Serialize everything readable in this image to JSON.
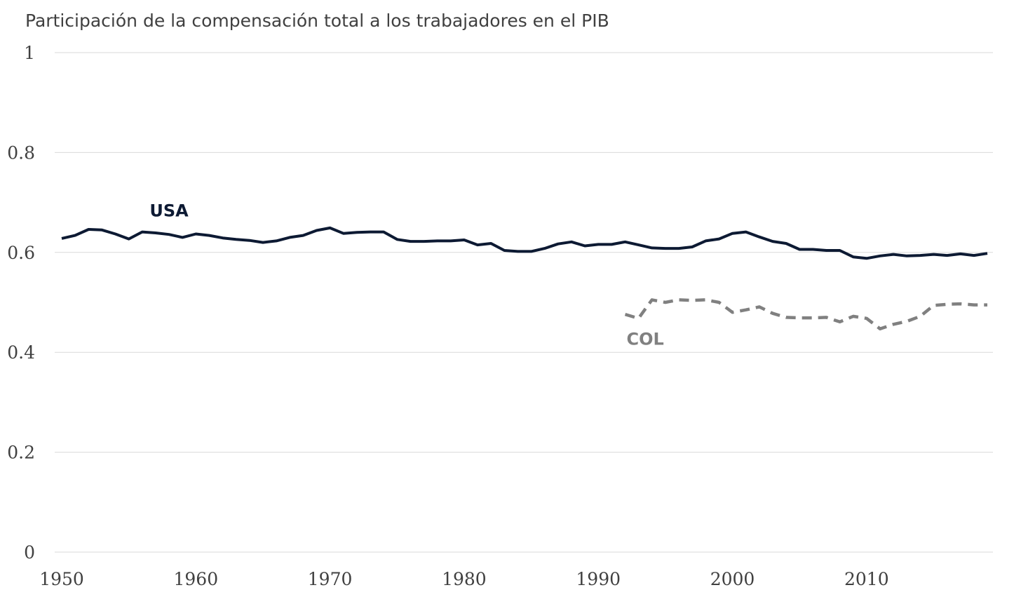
{
  "chart_data": {
    "type": "line",
    "title": "Participación de la compensación total a los trabajadores en el PIB",
    "xlabel": "",
    "ylabel": "",
    "xlim": [
      1950,
      2019
    ],
    "ylim": [
      0,
      1
    ],
    "grid": true,
    "legend": "none (series labeled directly on the plot)",
    "x_ticks": [
      "1950",
      "1960",
      "1970",
      "1980",
      "1990",
      "2000",
      "2010"
    ],
    "y_ticks": [
      "0",
      "0.2",
      "0.4",
      "0.6",
      "0.8",
      "1"
    ],
    "series": [
      {
        "name": "USA",
        "color": "#0d1a33",
        "style": "solid",
        "x": [
          1950,
          1951,
          1952,
          1953,
          1954,
          1955,
          1956,
          1957,
          1958,
          1959,
          1960,
          1961,
          1962,
          1963,
          1964,
          1965,
          1966,
          1967,
          1968,
          1969,
          1970,
          1971,
          1972,
          1973,
          1974,
          1975,
          1976,
          1977,
          1978,
          1979,
          1980,
          1981,
          1982,
          1983,
          1984,
          1985,
          1986,
          1987,
          1988,
          1989,
          1990,
          1991,
          1992,
          1993,
          1994,
          1995,
          1996,
          1997,
          1998,
          1999,
          2000,
          2001,
          2002,
          2003,
          2004,
          2005,
          2006,
          2007,
          2008,
          2009,
          2010,
          2011,
          2012,
          2013,
          2014,
          2015,
          2016,
          2017,
          2018,
          2019
        ],
        "values": [
          0.628,
          0.634,
          0.646,
          0.645,
          0.637,
          0.627,
          0.641,
          0.639,
          0.636,
          0.63,
          0.637,
          0.634,
          0.629,
          0.626,
          0.624,
          0.62,
          0.623,
          0.63,
          0.634,
          0.644,
          0.649,
          0.638,
          0.64,
          0.641,
          0.641,
          0.626,
          0.622,
          0.622,
          0.623,
          0.623,
          0.625,
          0.615,
          0.618,
          0.604,
          0.602,
          0.602,
          0.608,
          0.617,
          0.621,
          0.613,
          0.616,
          0.616,
          0.621,
          0.615,
          0.609,
          0.608,
          0.608,
          0.611,
          0.623,
          0.627,
          0.638,
          0.641,
          0.631,
          0.622,
          0.618,
          0.606,
          0.606,
          0.604,
          0.604,
          0.591,
          0.588,
          0.593,
          0.596,
          0.593,
          0.594,
          0.596,
          0.594,
          0.597,
          0.594,
          0.598
        ]
      },
      {
        "name": "COL",
        "color": "#808080",
        "style": "dashed",
        "x": [
          1992,
          1993,
          1994,
          1995,
          1996,
          1997,
          1998,
          1999,
          2000,
          2001,
          2002,
          2003,
          2004,
          2005,
          2006,
          2007,
          2008,
          2009,
          2010,
          2011,
          2012,
          2013,
          2014,
          2015,
          2016,
          2017,
          2018,
          2019
        ],
        "values": [
          0.476,
          0.468,
          0.505,
          0.5,
          0.505,
          0.504,
          0.505,
          0.5,
          0.48,
          0.485,
          0.491,
          0.478,
          0.47,
          0.469,
          0.469,
          0.47,
          0.461,
          0.472,
          0.468,
          0.447,
          0.456,
          0.462,
          0.472,
          0.494,
          0.496,
          0.497,
          0.495,
          0.495
        ]
      }
    ]
  }
}
